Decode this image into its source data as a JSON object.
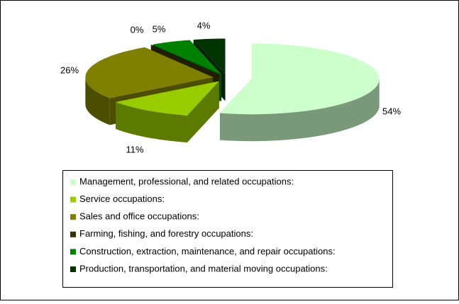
{
  "chart_data": {
    "type": "pie",
    "categories": [
      "Management, professional, and related occupations:",
      "Service occupations:",
      "Sales and office occupations:",
      "Farming, fishing, and forestry occupations:",
      "Construction, extraction, maintenance, and repair occupations:",
      "Production, transportation, and material moving occupations:"
    ],
    "values": [
      54,
      11,
      26,
      0,
      5,
      4
    ],
    "value_labels": [
      "54%",
      "11%",
      "26%",
      "0%",
      "5%",
      "4%"
    ],
    "colors": [
      "#ccffcc",
      "#99cc00",
      "#808000",
      "#333300",
      "#008000",
      "#003300"
    ],
    "legend": "bottom"
  }
}
